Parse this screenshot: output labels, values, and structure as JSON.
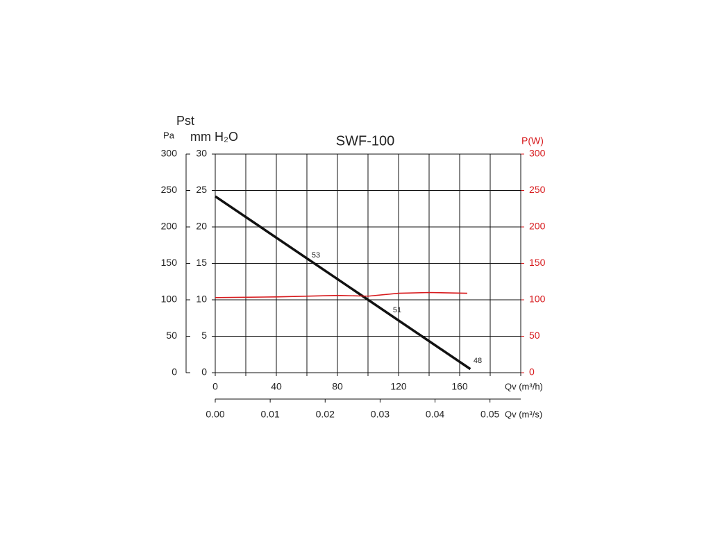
{
  "chart_data": {
    "type": "line",
    "title": "SWF-100",
    "ylabel": "Pst",
    "yunit": "Pa",
    "ymm_unit": "mm H₂O",
    "y2label": "P(W)",
    "xlabel": "Qv (m³/h)",
    "x2label": "Qv (m³/s)",
    "xlim": [
      0,
      200
    ],
    "xticks": [
      0,
      40,
      80,
      120,
      160
    ],
    "xminorticks": [
      20,
      60,
      100,
      140,
      180,
      200
    ],
    "x2lim": [
      0,
      0.0556
    ],
    "x2ticks": [
      {
        "value": 0,
        "label": "0.00"
      },
      {
        "value": 0.01,
        "label": "0.01"
      },
      {
        "value": 0.02,
        "label": "0.02"
      },
      {
        "value": 0.03,
        "label": "0.03"
      },
      {
        "value": 0.04,
        "label": "0.04"
      },
      {
        "value": 0.05,
        "label": "0.05"
      }
    ],
    "ylim": [
      0,
      300
    ],
    "yticks": [
      0,
      50,
      100,
      150,
      200,
      250,
      300
    ],
    "ymmlim": [
      0,
      30
    ],
    "ymmticks": [
      0,
      5,
      10,
      15,
      20,
      25,
      30
    ],
    "y2lim": [
      0,
      300
    ],
    "y2ticks": [
      0,
      50,
      100,
      150,
      200,
      250,
      300
    ],
    "y2color": "#d7191c",
    "grid": true,
    "series": [
      {
        "color": "#111111",
        "axis": "y",
        "x": [
          0,
          167
        ],
        "values": [
          242,
          5
        ]
      },
      {
        "color": "#d7191c",
        "axis": "y2",
        "x": [
          0,
          40,
          80,
          100,
          120,
          140,
          165
        ],
        "values": [
          103,
          104,
          106,
          105,
          109,
          110,
          109
        ]
      }
    ],
    "annotations": [
      {
        "text": "53"
      },
      {
        "text": "51"
      },
      {
        "text": "48"
      }
    ]
  }
}
